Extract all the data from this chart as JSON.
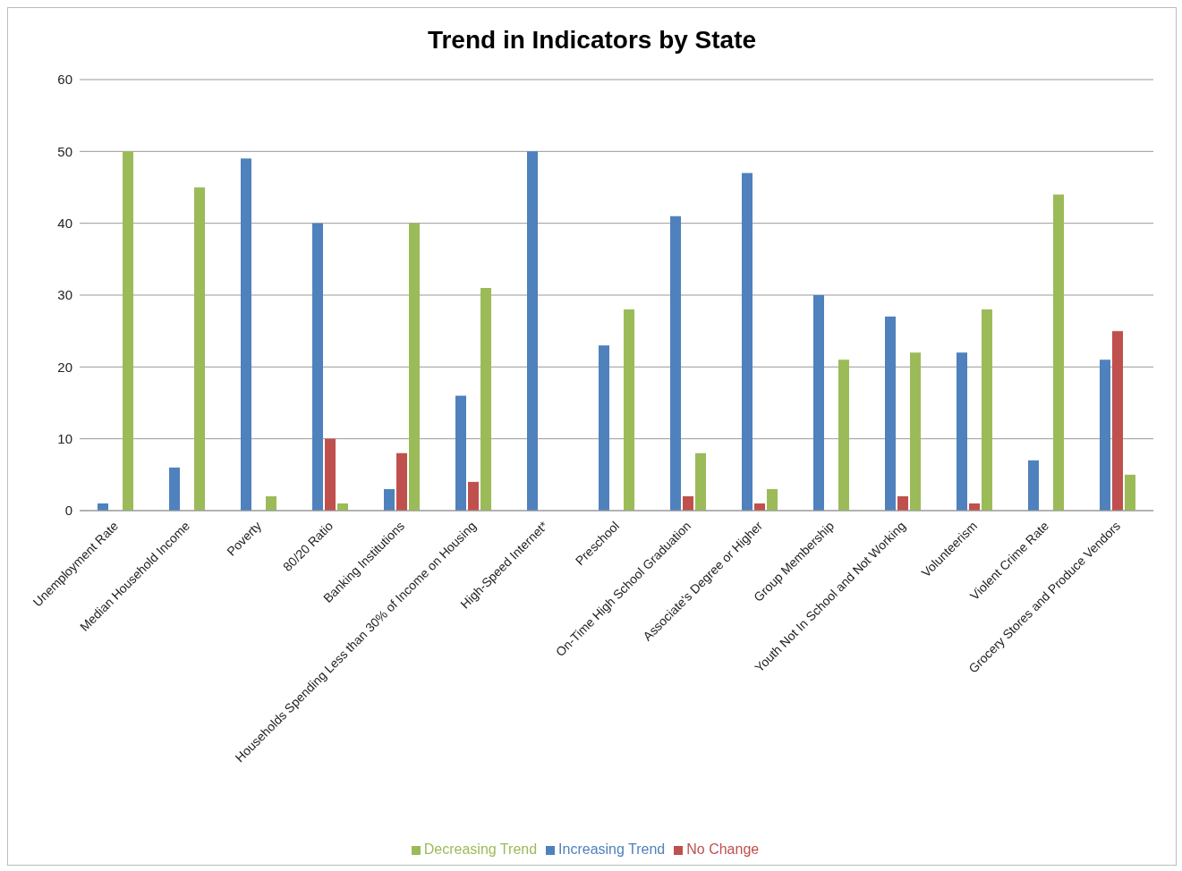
{
  "chart_data": {
    "type": "bar",
    "title": "Trend in Indicators by State",
    "categories": [
      "Unemployment Rate",
      "Median Household Income",
      "Poverty",
      "80/20 Ratio",
      "Banking Institutions",
      "Households Spending Less than 30% of Income on Housing",
      "High-Speed Internet*",
      "Preschool",
      "On-Time High School Graduation",
      "Associate's Degree or Higher",
      "Group Membership",
      "Youth Not In School and Not Working",
      "Volunteerism",
      "Violent Crime Rate",
      "Grocery Stores and Produce Vendors"
    ],
    "series": [
      {
        "name": "Increasing Trend",
        "color": "#4f81bd",
        "values": [
          1,
          6,
          49,
          40,
          3,
          16,
          50,
          23,
          41,
          47,
          30,
          27,
          22,
          7,
          21
        ]
      },
      {
        "name": "No Change",
        "color": "#c0504d",
        "values": [
          0,
          0,
          0,
          10,
          8,
          4,
          0,
          0,
          2,
          1,
          0,
          2,
          1,
          0,
          25
        ]
      },
      {
        "name": "Decreasing Trend",
        "color": "#9bbb59",
        "values": [
          50,
          45,
          2,
          1,
          40,
          31,
          0,
          28,
          8,
          3,
          21,
          22,
          28,
          44,
          5
        ]
      }
    ],
    "ylim": [
      0,
      60
    ],
    "yticks": [
      0,
      10,
      20,
      30,
      40,
      50,
      60
    ],
    "grid": "y",
    "legend": "bottom"
  }
}
